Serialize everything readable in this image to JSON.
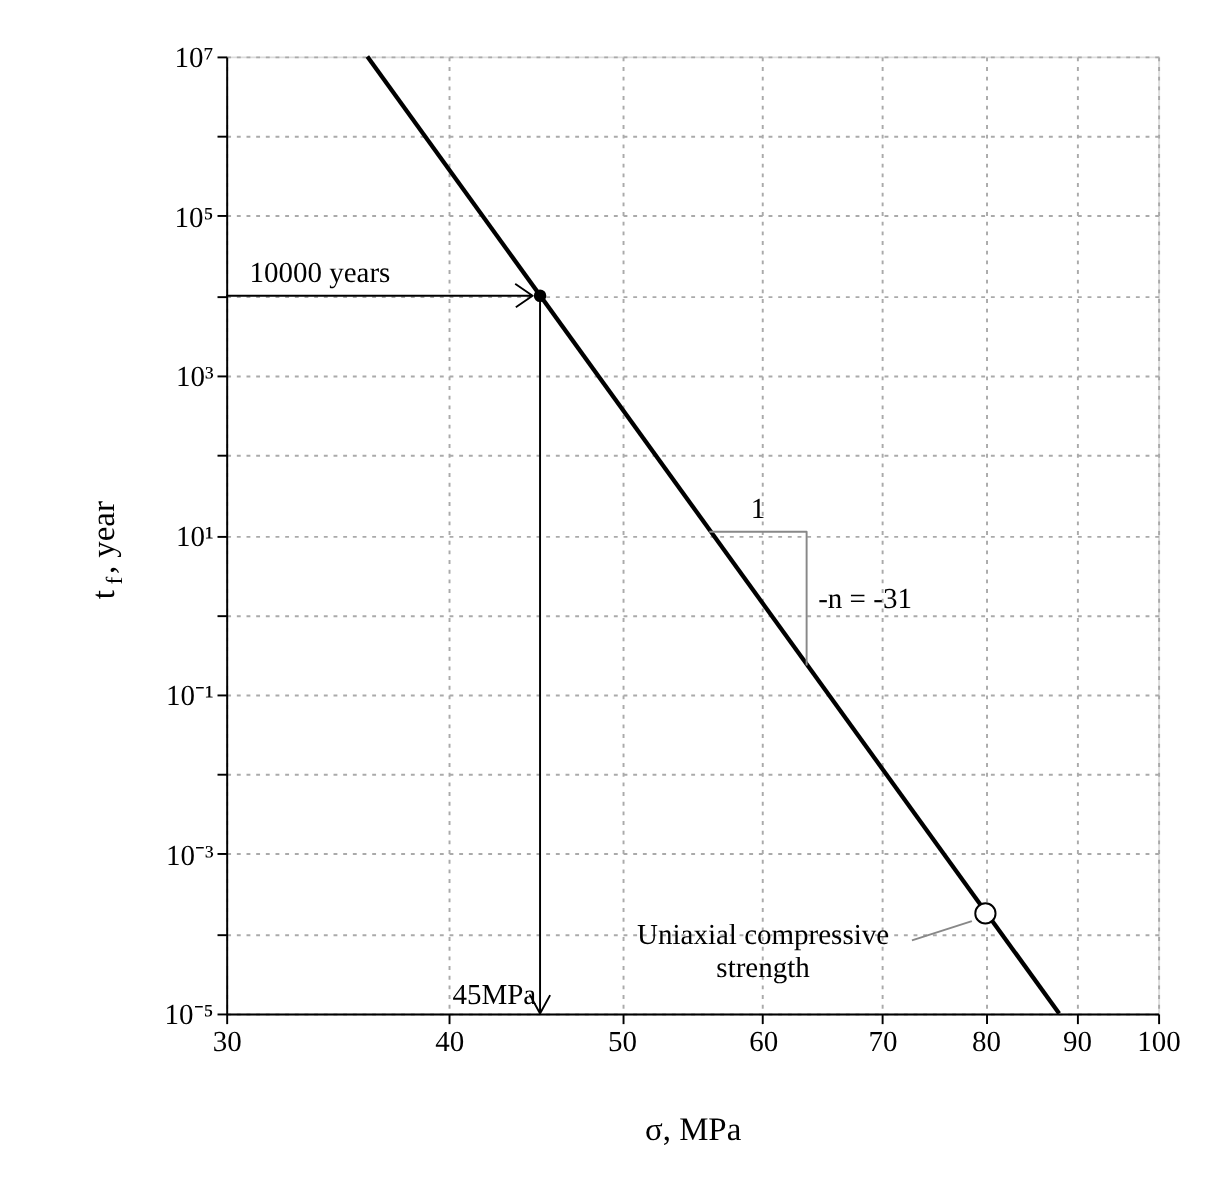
{
  "chart_data": {
    "type": "line",
    "xlabel": "σ,  MPa",
    "ylabel": "t$_{f}$,  year",
    "log": "xy",
    "grid": true,
    "xlim": [
      30,
      100
    ],
    "xticks": [
      30,
      40,
      50,
      60,
      70,
      80,
      90,
      100
    ],
    "ylim": [
      1e-05,
      10000000
    ],
    "yticks": [
      {
        "value": 1e-05,
        "label": "10⁻⁵"
      },
      {
        "value": 0.0001,
        "label": null
      },
      {
        "value": 0.001,
        "label": "10⁻³"
      },
      {
        "value": 0.01,
        "label": null
      },
      {
        "value": 0.1,
        "label": "10⁻¹"
      },
      {
        "value": 1,
        "label": null
      },
      {
        "value": 10,
        "label": "10¹"
      },
      {
        "value": 100,
        "label": null
      },
      {
        "value": 1000,
        "label": "10³"
      },
      {
        "value": 10000,
        "label": null
      },
      {
        "value": 100000,
        "label": "10⁵"
      },
      {
        "value": 1000000,
        "label": null
      },
      {
        "value": 10000000,
        "label": "10⁷"
      }
    ],
    "series": [
      {
        "color": "#000000",
        "x": [
          36,
          88
        ],
        "values": [
          10000000,
          1e-05
        ]
      },
      {
        "type": "scatter",
        "marker": "circle",
        "color": "#000000",
        "x": [
          45
        ],
        "values": [
          10000
        ]
      },
      {
        "type": "scatter",
        "marker": "circle",
        "color": "#ffffff",
        "x": [
          80
        ],
        "values": [
          0.00018
        ]
      },
      {
        "type": "line",
        "color": "#888888",
        "x": [
          56,
          63.5,
          63.5
        ],
        "values": [
          11,
          11,
          0.23
        ]
      }
    ],
    "annotations": [
      "10000 years",
      "45MPa",
      {
        "text": "1",
        "x": 56,
        "y": 11
      },
      "-n = -31",
      {
        "text": "Uniaxial compressive strength",
        "x": 80,
        "y": 0.00018
      }
    ]
  }
}
